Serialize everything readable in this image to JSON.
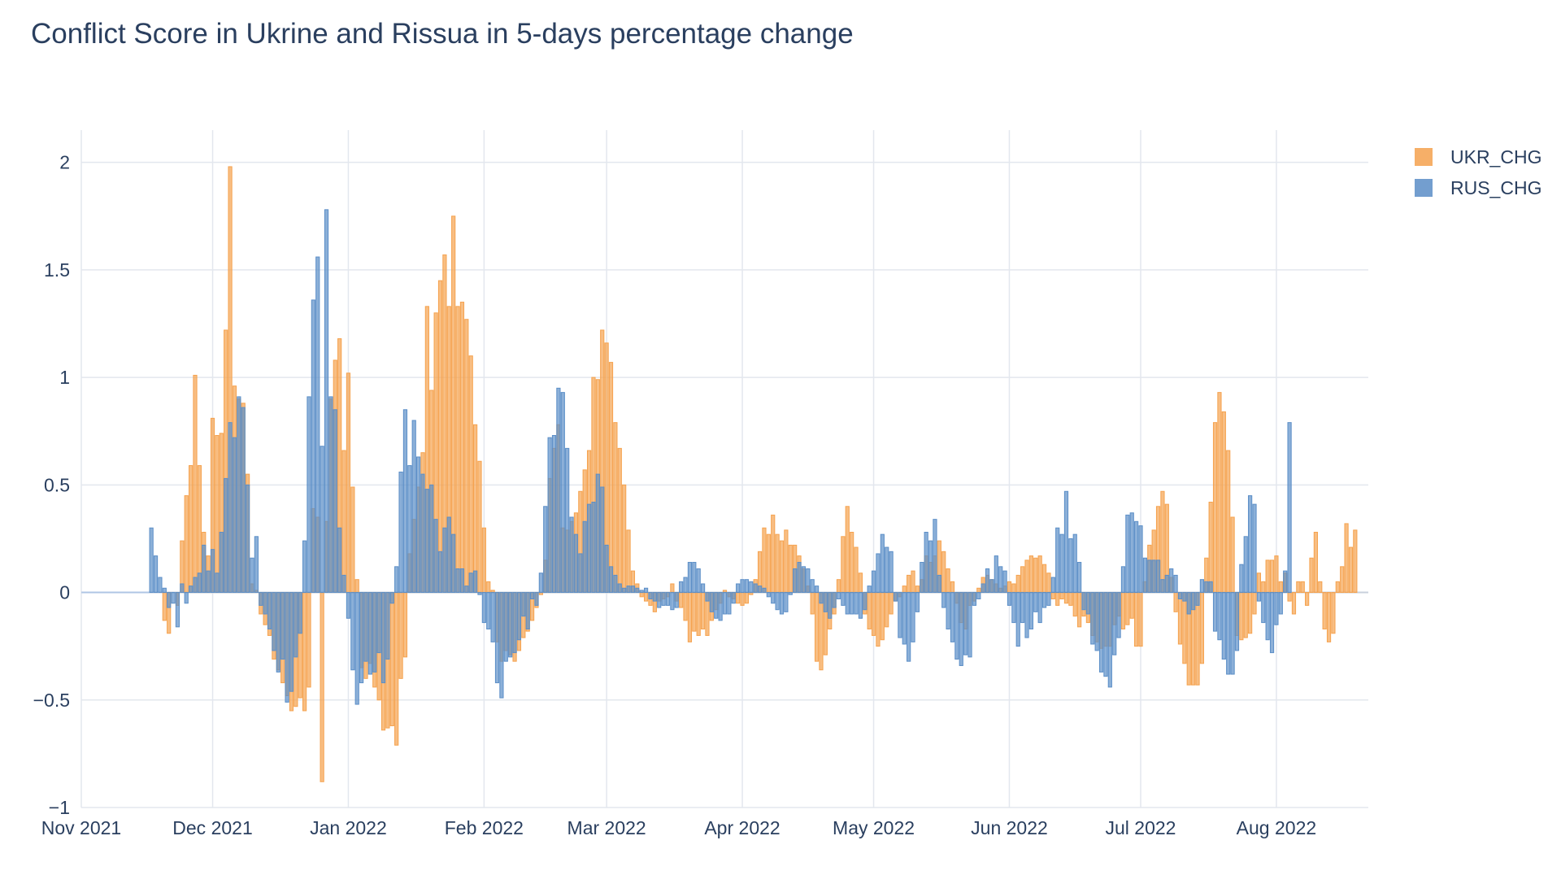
{
  "chart_data": {
    "type": "bar",
    "title": "Conflict Score in Ukrine and Rissua in 5-days percentage change",
    "xlabel": "",
    "ylabel": "",
    "ylim": [
      -1,
      2.15
    ],
    "y_ticks": [
      -1,
      -0.5,
      0,
      0.5,
      1,
      1.5,
      2
    ],
    "y_tick_labels": [
      "−1",
      "−0.5",
      "0",
      "0.5",
      "1",
      "1.5",
      "2"
    ],
    "x_ticks": [
      "2021-11-01",
      "2021-12-01",
      "2022-01-01",
      "2022-02-01",
      "2022-03-01",
      "2022-04-01",
      "2022-05-01",
      "2022-06-01",
      "2022-07-01",
      "2022-08-01"
    ],
    "x_tick_labels": [
      "Nov 2021",
      "Dec 2021",
      "Jan 2022",
      "Feb 2022",
      "Mar 2022",
      "Apr 2022",
      "May 2022",
      "Jun 2022",
      "Jul 2022",
      "Aug 2022"
    ],
    "xlim": [
      "2021-11-01",
      "2022-08-22"
    ],
    "grid": true,
    "barmode": "overlay",
    "legend_position": "top-right",
    "start_date": "2021-11-17",
    "series": [
      {
        "name": "UKR_CHG",
        "color": "#f5a24e",
        "values": [
          0,
          0,
          0,
          -0.13,
          -0.19,
          0,
          -0.06,
          0.24,
          0.45,
          0.59,
          1.01,
          0.59,
          0.28,
          0.17,
          0.81,
          0.73,
          0.74,
          1.22,
          1.98,
          0.96,
          0.9,
          0.88,
          0.55,
          0.04,
          0.01,
          -0.1,
          -0.15,
          -0.2,
          -0.31,
          -0.36,
          -0.42,
          -0.48,
          -0.55,
          -0.53,
          -0.49,
          -0.55,
          -0.44,
          0.39,
          0.35,
          -0.88,
          0.33,
          0.9,
          1.08,
          1.18,
          0.66,
          1.02,
          0.49,
          0.06,
          -0.35,
          -0.4,
          -0.33,
          -0.44,
          -0.5,
          -0.64,
          -0.63,
          -0.62,
          -0.71,
          -0.4,
          -0.3,
          0.18,
          0.34,
          0.49,
          0.65,
          1.33,
          0.94,
          1.3,
          1.45,
          1.57,
          1.33,
          1.75,
          1.33,
          1.35,
          1.27,
          1.1,
          0.78,
          0.61,
          0.3,
          0.05,
          0.01,
          -0.23,
          -0.32,
          -0.27,
          -0.29,
          -0.32,
          -0.27,
          -0.21,
          -0.18,
          -0.13,
          -0.07,
          -0.01,
          0.15,
          0.53,
          0.67,
          0.78,
          0.3,
          0.29,
          0.33,
          0.37,
          0.47,
          0.57,
          0.66,
          1.0,
          0.99,
          1.22,
          1.16,
          1.07,
          0.79,
          0.67,
          0.5,
          0.29,
          0.1,
          0.04,
          -0.02,
          -0.04,
          -0.06,
          -0.09,
          -0.04,
          -0.03,
          -0.02,
          0.04,
          -0.04,
          -0.07,
          -0.13,
          -0.23,
          -0.18,
          -0.2,
          -0.17,
          -0.2,
          -0.13,
          -0.08,
          -0.05,
          0.01,
          -0.02,
          -0.03,
          -0.05,
          -0.06,
          -0.05,
          -0.01,
          0.06,
          0.19,
          0.3,
          0.27,
          0.36,
          0.27,
          0.24,
          0.29,
          0.22,
          0.22,
          0.17,
          0.11,
          0.03,
          -0.1,
          -0.32,
          -0.36,
          -0.29,
          -0.17,
          -0.1,
          0.06,
          0.26,
          0.4,
          0.28,
          0.21,
          0.09,
          -0.1,
          -0.17,
          -0.2,
          -0.25,
          -0.22,
          -0.16,
          -0.1,
          -0.04,
          -0.02,
          0.03,
          0.08,
          0.1,
          0.03,
          0.06,
          0.17,
          0.14,
          0.17,
          0.24,
          0.19,
          0.11,
          0.05,
          -0.05,
          -0.14,
          -0.17,
          -0.06,
          -0.04,
          0.02,
          0.07,
          0.08,
          0.06,
          0.04,
          0.02,
          0.03,
          0.05,
          0.04,
          0.08,
          0.12,
          0.15,
          0.17,
          0.16,
          0.17,
          0.13,
          0.09,
          -0.03,
          -0.06,
          -0.03,
          -0.05,
          -0.06,
          -0.11,
          -0.16,
          -0.11,
          -0.14,
          -0.2,
          -0.23,
          -0.26,
          -0.25,
          -0.25,
          -0.15,
          -0.11,
          -0.17,
          -0.15,
          -0.12,
          -0.25,
          -0.25,
          0.05,
          0.22,
          0.29,
          0.4,
          0.47,
          0.41,
          0.07,
          -0.09,
          -0.24,
          -0.33,
          -0.43,
          -0.43,
          -0.43,
          -0.33,
          0.16,
          0.42,
          0.79,
          0.93,
          0.84,
          0.66,
          0.35,
          -0.2,
          -0.22,
          -0.21,
          -0.19,
          -0.1,
          0.09,
          0.05,
          0.15,
          0.15,
          0.17,
          0.05,
          0.09,
          -0.04,
          -0.1,
          0.05,
          0.05,
          -0.06,
          0.16,
          0.28,
          0.05,
          -0.17,
          -0.23,
          -0.19,
          0.05,
          0.12,
          0.32,
          0.21,
          0.29
        ]
      },
      {
        "name": "RUS_CHG",
        "color": "#5b8ec7",
        "values": [
          0.3,
          0.17,
          0.07,
          0.02,
          -0.07,
          -0.05,
          -0.16,
          0.04,
          -0.05,
          0.03,
          0.07,
          0.09,
          0.22,
          0.1,
          0.2,
          0.09,
          0.28,
          0.53,
          0.79,
          0.72,
          0.91,
          0.86,
          0.5,
          0.16,
          0.26,
          -0.06,
          -0.1,
          -0.17,
          -0.27,
          -0.37,
          -0.31,
          -0.51,
          -0.46,
          -0.3,
          -0.19,
          0.24,
          0.91,
          1.36,
          1.56,
          0.68,
          1.78,
          0.91,
          0.85,
          0.3,
          0.08,
          -0.12,
          -0.36,
          -0.52,
          -0.42,
          -0.32,
          -0.38,
          -0.37,
          -0.28,
          -0.42,
          -0.31,
          -0.05,
          0.12,
          0.56,
          0.85,
          0.59,
          0.8,
          0.63,
          0.55,
          0.48,
          0.5,
          0.34,
          0.19,
          0.3,
          0.35,
          0.27,
          0.11,
          0.11,
          0.03,
          0.09,
          0.1,
          -0.01,
          -0.14,
          -0.17,
          -0.23,
          -0.42,
          -0.49,
          -0.32,
          -0.3,
          -0.28,
          -0.22,
          -0.11,
          -0.17,
          -0.03,
          -0.06,
          0.09,
          0.4,
          0.72,
          0.73,
          0.95,
          0.93,
          0.67,
          0.35,
          0.27,
          0.18,
          0.33,
          0.41,
          0.42,
          0.55,
          0.49,
          0.22,
          0.12,
          0.08,
          0.04,
          0.02,
          0.03,
          0.03,
          0.02,
          0.01,
          0.02,
          -0.03,
          -0.04,
          -0.07,
          -0.06,
          -0.06,
          -0.08,
          -0.07,
          0.05,
          0.07,
          0.14,
          0.14,
          0.11,
          0.04,
          -0.04,
          -0.09,
          -0.12,
          -0.13,
          -0.1,
          -0.1,
          -0.05,
          0.04,
          0.06,
          0.06,
          0.05,
          0.04,
          0.03,
          0.02,
          -0.02,
          -0.05,
          -0.08,
          -0.1,
          -0.09,
          -0.01,
          0.11,
          0.14,
          0.12,
          0.11,
          0.06,
          0.03,
          -0.05,
          -0.09,
          -0.12,
          -0.07,
          -0.03,
          -0.06,
          -0.1,
          -0.1,
          -0.1,
          -0.12,
          -0.08,
          0.03,
          0.1,
          0.18,
          0.27,
          0.21,
          0.19,
          -0.04,
          -0.21,
          -0.24,
          -0.32,
          -0.23,
          -0.09,
          0.14,
          0.28,
          0.24,
          0.34,
          0.08,
          -0.07,
          -0.17,
          -0.23,
          -0.31,
          -0.34,
          -0.29,
          -0.3,
          -0.06,
          -0.03,
          0.04,
          0.11,
          0.06,
          0.17,
          0.12,
          0.1,
          -0.06,
          -0.14,
          -0.25,
          -0.14,
          -0.21,
          -0.17,
          -0.09,
          -0.14,
          -0.07,
          -0.06,
          0.07,
          0.3,
          0.27,
          0.47,
          0.25,
          0.27,
          0.14,
          -0.08,
          -0.1,
          -0.24,
          -0.27,
          -0.37,
          -0.39,
          -0.44,
          -0.29,
          -0.21,
          0.12,
          0.36,
          0.37,
          0.33,
          0.31,
          0.16,
          0.15,
          0.15,
          0.15,
          0.06,
          0.08,
          0.11,
          0.08,
          -0.03,
          -0.04,
          -0.1,
          -0.08,
          -0.06,
          0.06,
          0.05,
          0.05,
          -0.18,
          -0.22,
          -0.31,
          -0.38,
          -0.38,
          -0.27,
          0.13,
          0.26,
          0.45,
          0.41,
          -0.04,
          -0.14,
          -0.22,
          -0.28,
          -0.15,
          -0.1,
          0.1,
          0.79
        ]
      }
    ]
  }
}
